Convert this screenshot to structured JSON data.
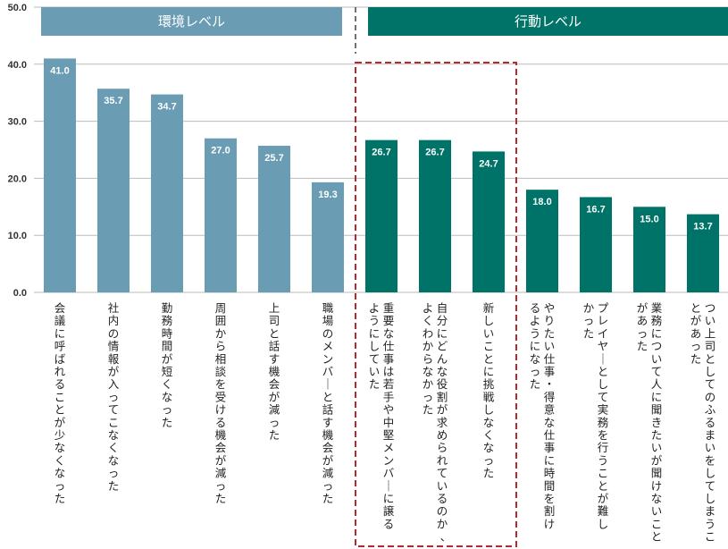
{
  "chart_data": {
    "type": "bar",
    "ylim": [
      0,
      50
    ],
    "yticks": [
      "0.0",
      "10.0",
      "20.0",
      "30.0",
      "40.0",
      "50.0"
    ],
    "grid": true,
    "groups": [
      {
        "label": "環境レベル",
        "color": "#6a9cb3",
        "count": 6
      },
      {
        "label": "行動レベル",
        "color": "#007369",
        "count": 7
      }
    ],
    "categories": [
      "会議に呼ばれることが少なくなった",
      "社内の情報が入ってこなくなった",
      "勤務時間が短くなった",
      "周囲から相談を受ける機会が減った",
      "上司と話す機会が減った",
      "職場のメンバーと話す機会が減った",
      "重要な仕事は若手や中堅メンバーに譲るようにしていた",
      "自分にどんな役割が求められているのか、よくわからなかった",
      "新しいことに挑戦しなくなった",
      "やりたい仕事・得意な仕事に時間を割けるようになった",
      "プレイヤーとして実務を行うことが難しかった",
      "業務について人に聞きたいが聞けないことがあった",
      "つい上司としてのふるまいをしてしまうことがあった"
    ],
    "values": [
      41.0,
      35.7,
      34.7,
      27.0,
      25.7,
      19.3,
      26.7,
      26.7,
      24.7,
      18.0,
      16.7,
      15.0,
      13.7
    ],
    "value_labels": [
      "41.0",
      "35.7",
      "34.7",
      "27.0",
      "25.7",
      "19.3",
      "26.7",
      "26.7",
      "24.7",
      "18.0",
      "16.7",
      "15.0",
      "13.7"
    ],
    "category_lines": [
      [
        "会議に呼ばれることが少なくなった"
      ],
      [
        "社内の情報が入ってこなくなった"
      ],
      [
        "勤務時間が短くなった"
      ],
      [
        "周囲から相談を受ける機会が減った"
      ],
      [
        "上司と話す機会が減った"
      ],
      [
        "職場のメンバーと話す機会が減った"
      ],
      [
        "重要な仕事は若手や中堅メンバーに譲る",
        "ようにしていた"
      ],
      [
        "自分にどんな役割が求められているのか、",
        "よくわからなかった"
      ],
      [
        "新しいことに挑戦しなくなった"
      ],
      [
        "やりたい仕事・得意な仕事に時間を割け",
        "るようになった"
      ],
      [
        "プレイヤーとして実務を行うことが難し",
        "かった"
      ],
      [
        "業務について人に聞きたいが聞けないこと",
        "があった"
      ],
      [
        "つい上司としてのふるまいをしてしまうこ",
        "とがあった"
      ]
    ],
    "highlight_range": [
      6,
      8
    ],
    "highlight_color": "#b5282e",
    "divider_color": "#444444",
    "grid_color": "#bbbbbb"
  }
}
